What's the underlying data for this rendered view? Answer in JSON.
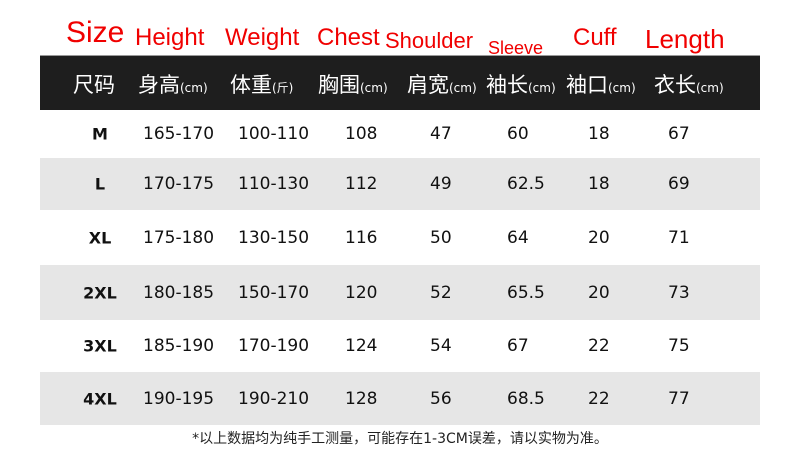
{
  "english_headers": [
    "Size",
    "Height",
    "Weight",
    "Chest",
    "Shoulder",
    "Sleeve",
    "Cuff",
    "Length"
  ],
  "chinese_headers": [
    {
      "label": "尺码",
      "unit": ""
    },
    {
      "label": "身高",
      "unit": "(cm)"
    },
    {
      "label": "体重",
      "unit": "(斤)"
    },
    {
      "label": "胸围",
      "unit": "(cm)"
    },
    {
      "label": "肩宽",
      "unit": "(cm)"
    },
    {
      "label": "袖长",
      "unit": "(cm)"
    },
    {
      "label": "袖口",
      "unit": "(cm)"
    },
    {
      "label": "衣长",
      "unit": "(cm)"
    }
  ],
  "rows": [
    [
      "M",
      "165-170",
      "100-110",
      "108",
      "47",
      "60",
      "18",
      "67"
    ],
    [
      "L",
      "170-175",
      "110-130",
      "112",
      "49",
      "62.5",
      "18",
      "69"
    ],
    [
      "XL",
      "175-180",
      "130-150",
      "116",
      "50",
      "64",
      "20",
      "71"
    ],
    [
      "2XL",
      "180-185",
      "150-170",
      "120",
      "52",
      "65.5",
      "20",
      "73"
    ],
    [
      "3XL",
      "185-190",
      "170-190",
      "124",
      "54",
      "67",
      "22",
      "75"
    ],
    [
      "4XL",
      "190-195",
      "190-210",
      "128",
      "56",
      "68.5",
      "22",
      "77"
    ]
  ],
  "note": "*以上数据均为纯手工测量，可能存在1-3CM误差，请以实物为准。",
  "colors": {
    "english_header": "#f00000",
    "header_bar": "#1e1e1e",
    "alt_row": "#e6e6e6"
  }
}
